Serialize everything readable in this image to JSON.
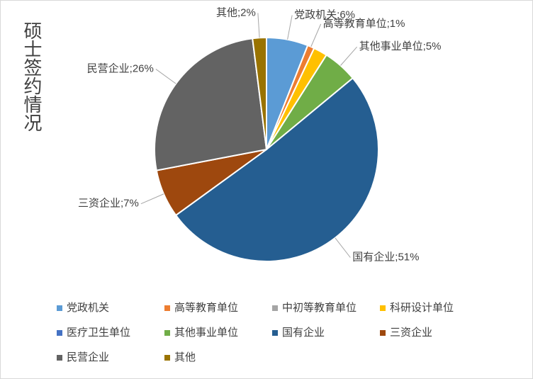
{
  "chart_data": {
    "type": "pie",
    "title": "硕士签约情况",
    "categories": [
      "党政机关",
      "高等教育单位",
      "中初等教育单位",
      "科研设计单位",
      "医疗卫生单位",
      "其他事业单位",
      "国有企业",
      "三资企业",
      "民营企业",
      "其他"
    ],
    "values": [
      6,
      1,
      0,
      2,
      0,
      5,
      51,
      7,
      26,
      2
    ],
    "value_labels": [
      "党政机关;6%",
      "高等教育单位;1%",
      null,
      null,
      null,
      "其他事业单位;5%",
      "国有企业;51%",
      "三资企业;7%",
      "民营企业;26%",
      "其他;2%"
    ],
    "colors": [
      "#5b9bd5",
      "#ed7d31",
      "#a5a5a5",
      "#ffc000",
      "#4472c4",
      "#70ad47",
      "#255e91",
      "#9e480e",
      "#636363",
      "#997300"
    ],
    "legend": "bottom"
  }
}
